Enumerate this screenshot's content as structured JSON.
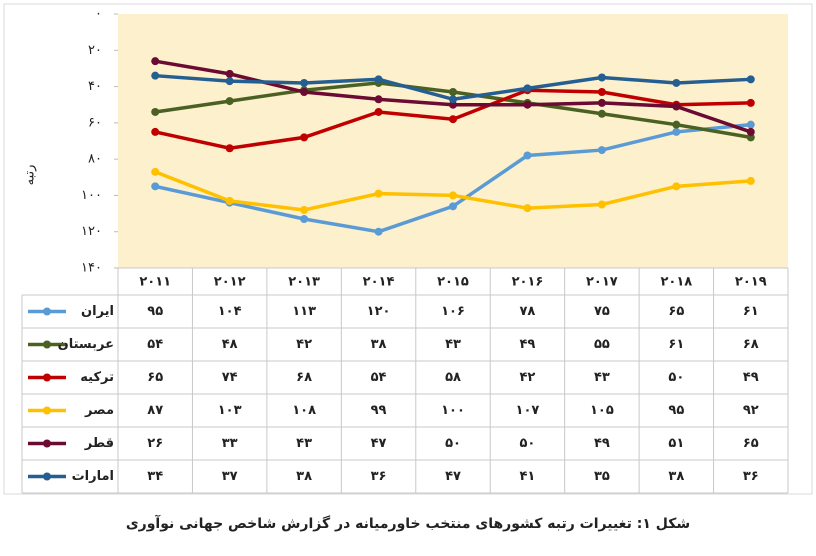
{
  "chart_data": {
    "type": "line",
    "caption": "شکل ۱: تغییرات رتبه کشورهای منتخب خاورمیانه در گزارش شاخص جهانی نوآوری",
    "y_label": "رتبه",
    "categories": [
      "۲۰۱۱",
      "۲۰۱۲",
      "۲۰۱۳",
      "۲۰۱۴",
      "۲۰۱۵",
      "۲۰۱۶",
      "۲۰۱۷",
      "۲۰۱۸",
      "۲۰۱۹"
    ],
    "ylim": [
      0,
      140
    ],
    "y_reversed": true,
    "yticks": [
      {
        "value": 0,
        "label": "۰"
      },
      {
        "value": 20,
        "label": "۲۰"
      },
      {
        "value": 40,
        "label": "۴۰"
      },
      {
        "value": 60,
        "label": "۶۰"
      },
      {
        "value": 80,
        "label": "۸۰"
      },
      {
        "value": 100,
        "label": "۱۰۰"
      },
      {
        "value": 120,
        "label": "۱۲۰"
      },
      {
        "value": 140,
        "label": "۱۴۰"
      }
    ],
    "plot_background": "#fdf0cc",
    "series": [
      {
        "name": "ایران",
        "color": "#5b9bd5",
        "values": [
          95,
          104,
          113,
          120,
          106,
          78,
          75,
          65,
          61
        ],
        "value_labels": [
          "۹۵",
          "۱۰۴",
          "۱۱۳",
          "۱۲۰",
          "۱۰۶",
          "۷۸",
          "۷۵",
          "۶۵",
          "۶۱"
        ]
      },
      {
        "name": "عربستان",
        "color": "#4a6123",
        "values": [
          54,
          48,
          42,
          38,
          43,
          49,
          55,
          61,
          68
        ],
        "value_labels": [
          "۵۴",
          "۴۸",
          "۴۲",
          "۳۸",
          "۴۳",
          "۴۹",
          "۵۵",
          "۶۱",
          "۶۸"
        ]
      },
      {
        "name": "ترکیه",
        "color": "#c00000",
        "values": [
          65,
          74,
          68,
          54,
          58,
          42,
          43,
          50,
          49
        ],
        "value_labels": [
          "۶۵",
          "۷۴",
          "۶۸",
          "۵۴",
          "۵۸",
          "۴۲",
          "۴۳",
          "۵۰",
          "۴۹"
        ]
      },
      {
        "name": "مصر",
        "color": "#ffc000",
        "values": [
          87,
          103,
          108,
          99,
          100,
          107,
          105,
          95,
          92
        ],
        "value_labels": [
          "۸۷",
          "۱۰۳",
          "۱۰۸",
          "۹۹",
          "۱۰۰",
          "۱۰۷",
          "۱۰۵",
          "۹۵",
          "۹۲"
        ]
      },
      {
        "name": "قطر",
        "color": "#6b0a33",
        "values": [
          26,
          33,
          43,
          47,
          50,
          50,
          49,
          51,
          65
        ],
        "value_labels": [
          "۲۶",
          "۳۳",
          "۴۳",
          "۴۷",
          "۵۰",
          "۵۰",
          "۴۹",
          "۵۱",
          "۶۵"
        ]
      },
      {
        "name": "امارات",
        "color": "#255e91",
        "values": [
          34,
          37,
          38,
          36,
          47,
          41,
          35,
          38,
          36
        ],
        "value_labels": [
          "۳۴",
          "۳۷",
          "۳۸",
          "۳۶",
          "۴۷",
          "۴۱",
          "۳۵",
          "۳۸",
          "۳۶"
        ]
      }
    ]
  }
}
